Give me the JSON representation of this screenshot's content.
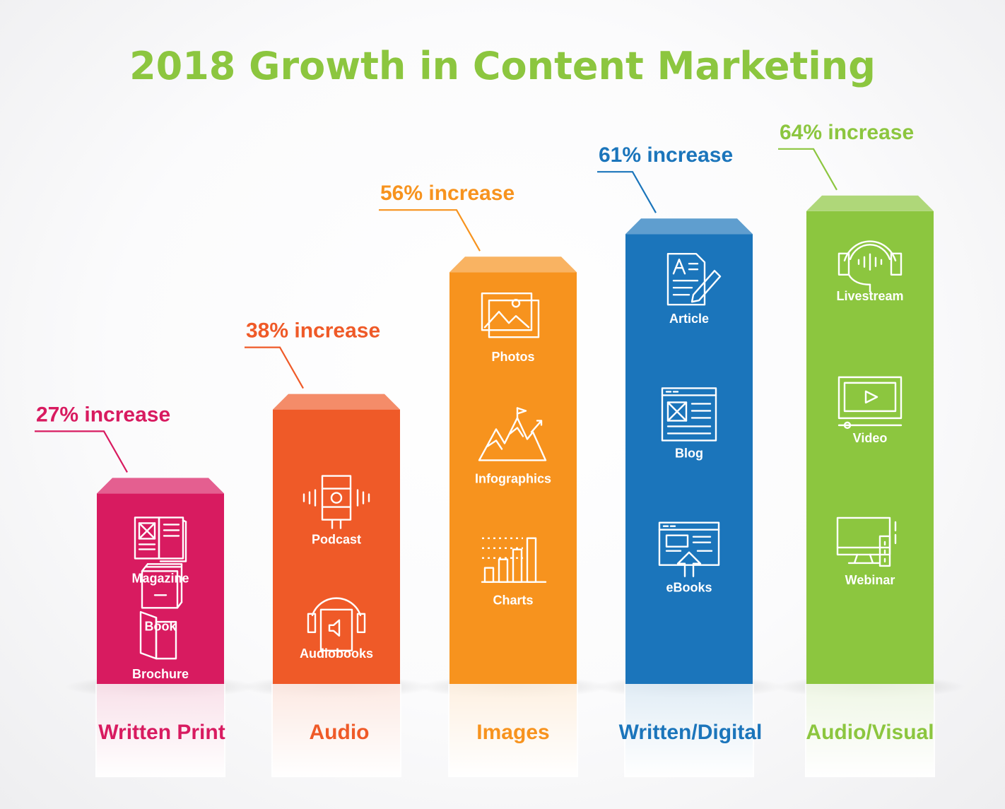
{
  "colors": {
    "title": "#8cc63f",
    "written_print": "#d81b60",
    "audio": "#ef5a28",
    "images": "#f7931e",
    "written_digital": "#1b75bb",
    "audio_visual": "#8cc63f"
  },
  "chart_data": {
    "type": "bar",
    "title": "2018 Growth in Content Marketing",
    "categories": [
      "Written Print",
      "Audio",
      "Images",
      "Written/Digital",
      "Audio/Visual"
    ],
    "values": [
      27,
      38,
      56,
      61,
      64
    ],
    "unit": "%",
    "data_labels": [
      "27% increase",
      "38% increase",
      "56% increase",
      "61% increase",
      "64% increase"
    ],
    "ylim": [
      0,
      80
    ],
    "grid": false,
    "bars": [
      {
        "category": "Written Print",
        "color": "#d81b60",
        "items": [
          {
            "label": "Magazine",
            "icon": "magazine-icon"
          },
          {
            "label": "Book",
            "icon": "book-icon"
          },
          {
            "label": "Brochure",
            "icon": "brochure-icon"
          }
        ]
      },
      {
        "category": "Audio",
        "color": "#ef5a28",
        "items": [
          {
            "label": "Podcast",
            "icon": "microphone-icon"
          },
          {
            "label": "Audiobooks",
            "icon": "audiobook-headphones-icon"
          }
        ]
      },
      {
        "category": "Images",
        "color": "#f7931e",
        "items": [
          {
            "label": "Photos",
            "icon": "photos-icon"
          },
          {
            "label": "Infographics",
            "icon": "mountain-flag-icon"
          },
          {
            "label": "Charts",
            "icon": "bar-chart-icon"
          }
        ]
      },
      {
        "category": "Written/Digital",
        "color": "#1b75bb",
        "items": [
          {
            "label": "Article",
            "icon": "article-pen-icon"
          },
          {
            "label": "Blog",
            "icon": "blog-page-icon"
          },
          {
            "label": "eBooks",
            "icon": "ebook-download-icon"
          }
        ]
      },
      {
        "category": "Audio/Visual",
        "color": "#8cc63f",
        "items": [
          {
            "label": "Livestream",
            "icon": "headphones-icon"
          },
          {
            "label": "Video",
            "icon": "video-player-icon"
          },
          {
            "label": "Webinar",
            "icon": "monitor-remote-icon"
          }
        ]
      }
    ]
  }
}
